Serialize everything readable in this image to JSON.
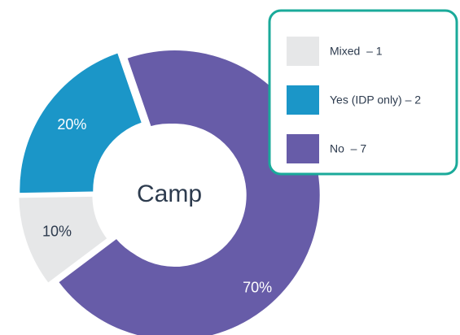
{
  "chart_data": {
    "type": "donut",
    "center_label": "Camp",
    "categories": [
      "Mixed  – 1",
      "Yes (IDP only) – 2",
      "No  – 7"
    ],
    "values": [
      10,
      20,
      70
    ],
    "value_labels": [
      "10%",
      "20%",
      "70%"
    ],
    "colors": [
      "#e6e7e8",
      "#1b96c8",
      "#675ca8"
    ],
    "legend": "top-right"
  }
}
